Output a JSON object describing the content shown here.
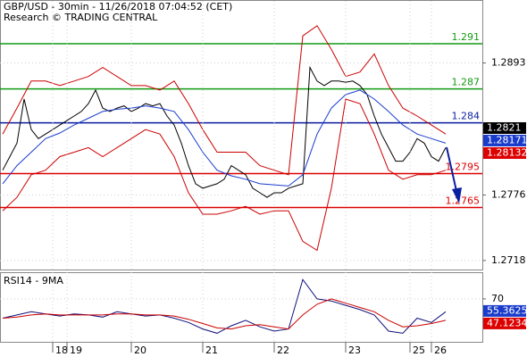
{
  "chart_data": [
    {
      "type": "line",
      "title": "GBP/USD - 30min - 11/26/2018 07:04:52 (CET)",
      "subtitle": "Research © TRADING CENTRAL",
      "xlim": [
        0,
        62
      ],
      "ylim": [
        1.271,
        1.2948
      ],
      "yticks": [
        1.2718,
        1.2776,
        1.2893
      ],
      "grid": true,
      "series": [
        {
          "color": "#000000",
          "values": [
            1.2798,
            1.281,
            1.2822,
            1.2861,
            1.2834,
            1.2826,
            1.283,
            1.2834,
            1.2838,
            1.2842,
            1.2846,
            1.285,
            1.2857,
            1.2869,
            1.2853,
            1.285,
            1.2853,
            1.2855,
            1.285,
            1.2853,
            1.2857,
            1.2855,
            1.2857,
            1.2846,
            1.2838,
            1.2822,
            1.2802,
            1.2786,
            1.2782,
            1.2784,
            1.2786,
            1.279,
            1.2802,
            1.2798,
            1.2794,
            1.2782,
            1.2778,
            1.2774,
            1.2778,
            1.2778,
            1.2782,
            1.2784,
            1.2786,
            1.2889,
            1.2877,
            1.2873,
            1.2877,
            1.2877,
            1.2876,
            1.2877,
            1.2873,
            1.2865,
            1.2846,
            1.283,
            1.2818,
            1.2806,
            1.2806,
            1.2814,
            1.2826,
            1.2822,
            1.281,
            1.2806,
            1.2818
          ]
        },
        {
          "color": "#cc0000",
          "values": [
            1.283,
            1.2853,
            1.2877,
            1.2877,
            1.2873,
            1.2877,
            1.2881,
            1.2889,
            1.2881,
            1.2873,
            1.2873,
            1.2869,
            1.2877,
            1.2857,
            1.2834,
            1.2814,
            1.2814,
            1.2814,
            1.2802,
            1.2798,
            1.2794,
            1.2917,
            1.2926,
            1.2905,
            1.2881,
            1.2885,
            1.2901,
            1.2873,
            1.2853,
            1.2846,
            1.2838,
            1.283
          ]
        },
        {
          "color": "#cc0000",
          "values": [
            1.2762,
            1.2774,
            1.2794,
            1.2798,
            1.281,
            1.2814,
            1.2818,
            1.281,
            1.2818,
            1.2826,
            1.2834,
            1.283,
            1.281,
            1.2778,
            1.2759,
            1.2759,
            1.2762,
            1.2766,
            1.2759,
            1.2762,
            1.2762,
            1.2735,
            1.2727,
            1.2782,
            1.2861,
            1.2857,
            1.283,
            1.2798,
            1.279,
            1.2794,
            1.2794,
            1.2798
          ]
        },
        {
          "color": "#1a3ccc",
          "values": [
            1.2786,
            1.2802,
            1.2814,
            1.2826,
            1.2831,
            1.2838,
            1.2844,
            1.285,
            1.2852,
            1.2853,
            1.2855,
            1.2853,
            1.285,
            1.2834,
            1.2814,
            1.2798,
            1.2793,
            1.279,
            1.2786,
            1.2785,
            1.2784,
            1.2794,
            1.283,
            1.2853,
            1.2865,
            1.2869,
            1.2861,
            1.285,
            1.2838,
            1.283,
            1.2826,
            1.2822
          ]
        }
      ],
      "levels": [
        {
          "value": 1.291,
          "color": "#139a13"
        },
        {
          "value": 1.287,
          "color": "#139a13"
        },
        {
          "value": 1.284,
          "color": "#0a1ea0"
        },
        {
          "value": 1.2795,
          "color": "#dd0000"
        },
        {
          "value": 1.2765,
          "color": "#dd0000"
        }
      ],
      "markers": [
        {
          "value": 1.2821,
          "color": "#000000"
        },
        {
          "value": 1.28171,
          "color": "#1a3ccc"
        },
        {
          "value": 1.28132,
          "color": "#dd0000"
        }
      ]
    },
    {
      "type": "line",
      "title": "RSI14 - 9MA",
      "xlim": [
        0,
        62
      ],
      "xticks": [
        {
          "value": 7,
          "label": "18"
        },
        {
          "value": 9,
          "label": "19"
        },
        {
          "value": 18,
          "label": "20"
        },
        {
          "value": 28,
          "label": "21"
        },
        {
          "value": 38,
          "label": "22"
        },
        {
          "value": 48,
          "label": "23"
        },
        {
          "value": 57,
          "label": "25"
        },
        {
          "value": 60,
          "label": "26"
        }
      ],
      "ylim": [
        30,
        94
      ],
      "yticks": [
        70
      ],
      "series": [
        {
          "color": "#10107a",
          "values": [
            52,
            55,
            58,
            56,
            54,
            56,
            55,
            53,
            58,
            56,
            54,
            55,
            52,
            48,
            42,
            38,
            45,
            50,
            44,
            40,
            42,
            88,
            70,
            68,
            64,
            60,
            55,
            40,
            38,
            52,
            48,
            58
          ]
        },
        {
          "color": "#cc0000",
          "values": [
            52,
            53,
            55,
            56,
            55,
            55,
            55,
            55,
            56,
            56,
            55,
            55,
            54,
            51,
            47,
            43,
            42,
            45,
            46,
            44,
            42,
            55,
            65,
            70,
            66,
            62,
            58,
            50,
            44,
            45,
            47,
            50
          ]
        }
      ],
      "markers": [
        {
          "value": 55.3625,
          "color": "#1a3ccc"
        },
        {
          "value": 47.1234,
          "color": "#dd0000"
        }
      ]
    }
  ]
}
